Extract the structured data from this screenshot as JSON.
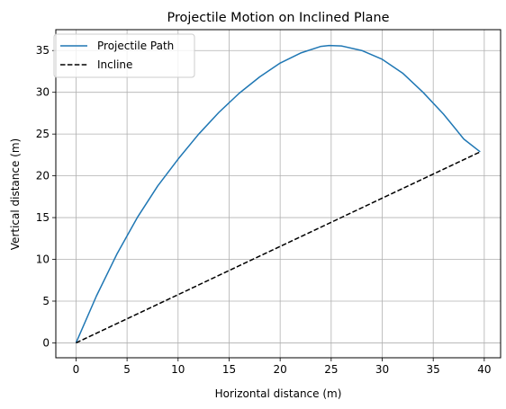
{
  "chart_data": {
    "type": "line",
    "title": "Projectile Motion on Inclined Plane",
    "xlabel": "Horizontal distance (m)",
    "ylabel": "Vertical distance (m)",
    "xlim": [
      -1.98,
      41.6
    ],
    "ylim": [
      -1.78,
      37.5
    ],
    "xticks": [
      0,
      5,
      10,
      15,
      20,
      25,
      30,
      35,
      40
    ],
    "yticks": [
      0,
      5,
      10,
      15,
      20,
      25,
      30,
      35
    ],
    "grid": true,
    "legend_position": "upper-left",
    "series": [
      {
        "name": "Projectile Path",
        "style": "solid",
        "color": "#1f77b4",
        "x": [
          0,
          2,
          4,
          6,
          8,
          10,
          12,
          14,
          16,
          18,
          20,
          22,
          24,
          24.8,
          26,
          28,
          30,
          32,
          34,
          36,
          38,
          39.6
        ],
        "y": [
          0,
          5.62,
          10.62,
          15.0,
          18.78,
          22.0,
          24.97,
          27.6,
          29.9,
          31.85,
          33.5,
          34.7,
          35.5,
          35.6,
          35.55,
          35.0,
          33.95,
          32.3,
          30.0,
          27.4,
          24.4,
          22.87
        ]
      },
      {
        "name": "Incline",
        "style": "dashed",
        "color": "#000000",
        "x": [
          0,
          39.6
        ],
        "y": [
          0,
          22.87
        ]
      }
    ]
  }
}
